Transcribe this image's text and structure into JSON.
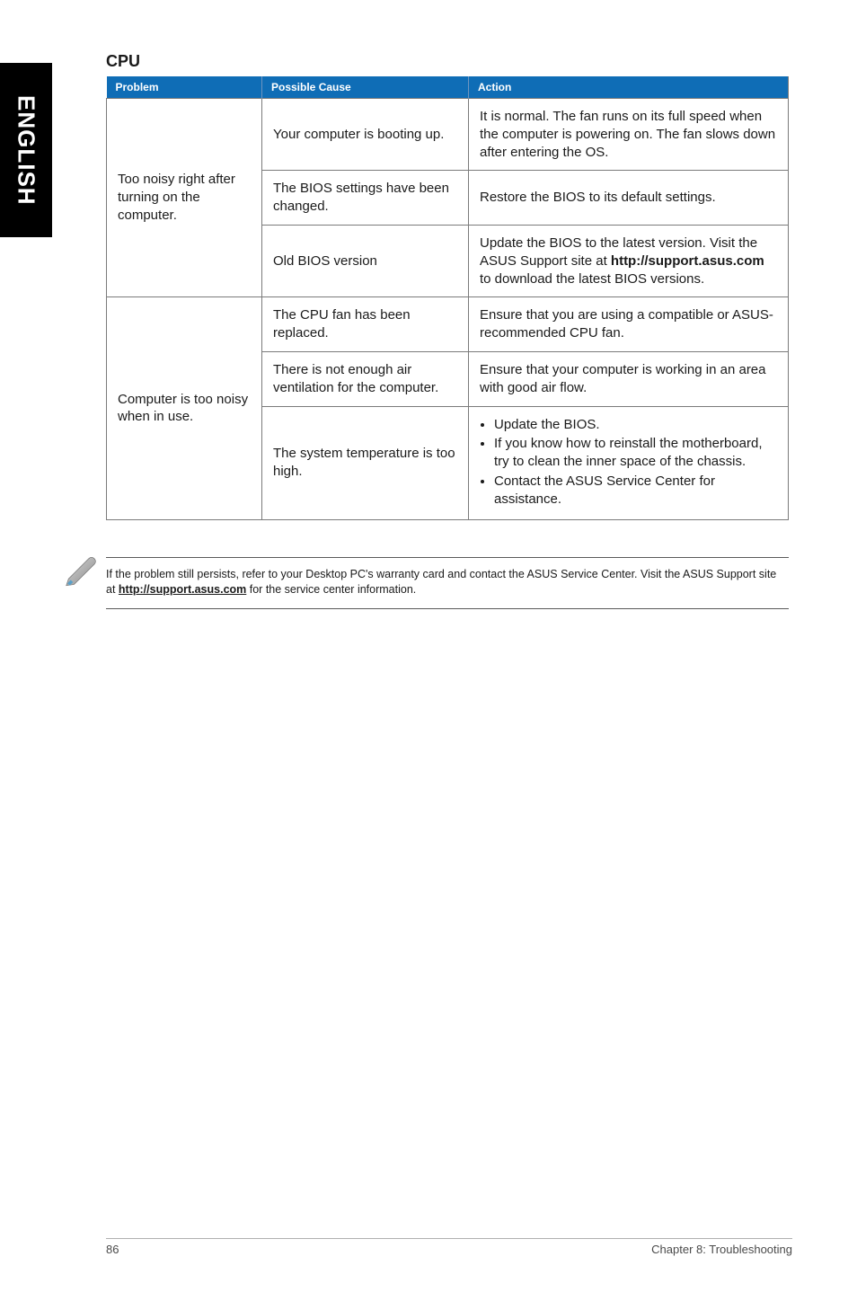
{
  "side_tab": {
    "label": "ENGLISH"
  },
  "heading": "CPU",
  "table": {
    "headers": {
      "problem": "Problem",
      "cause": "Possible Cause",
      "action": "Action"
    },
    "group1": {
      "problem": "Too noisy right after turning on the computer.",
      "rows": [
        {
          "cause": "Your computer is booting up.",
          "action_html": "It is normal. The fan runs on its full speed when the computer is powering on. The fan slows down after entering the OS."
        },
        {
          "cause": "The BIOS settings have been changed.",
          "action_html": "Restore the BIOS to its default settings."
        },
        {
          "cause": "Old BIOS version",
          "action_html": "Update the BIOS to the latest version. Visit the ASUS Support site at <b>http://support.asus.com</b> to download the latest BIOS versions."
        }
      ]
    },
    "group2": {
      "problem": "Computer is too noisy when in use.",
      "rows": [
        {
          "cause": "The CPU fan has been replaced.",
          "action_html": "Ensure that you are using a compatible or ASUS-recommended CPU fan."
        },
        {
          "cause": "There is not enough air ventilation for the computer.",
          "action_html": "Ensure that your computer is working in an area with good air flow."
        },
        {
          "cause": "The system temperature is too high.",
          "action_html": "<ul class=\"bullets\"><li>Update the BIOS.</li><li>If you know how to reinstall the motherboard, try to clean the inner space of the chassis.</li><li>Contact the ASUS Service Center for assistance.</li></ul>"
        }
      ]
    }
  },
  "note": {
    "text_html": "If the problem still persists, refer to your Desktop PC's warranty card and contact the ASUS Service Center. Visit the ASUS Support site at <b><u>http://support.asus.com</u></b> for the service center information."
  },
  "footer": {
    "page": "86",
    "chapter": "Chapter 8: Troubleshooting"
  },
  "colors": {
    "header_bg": "#0f6db6",
    "header_text": "#ffffff",
    "border": "#7b7b7b",
    "body_text": "#1a1a1a",
    "side_bg": "#000000",
    "footer_text": "#4a4a4a"
  }
}
